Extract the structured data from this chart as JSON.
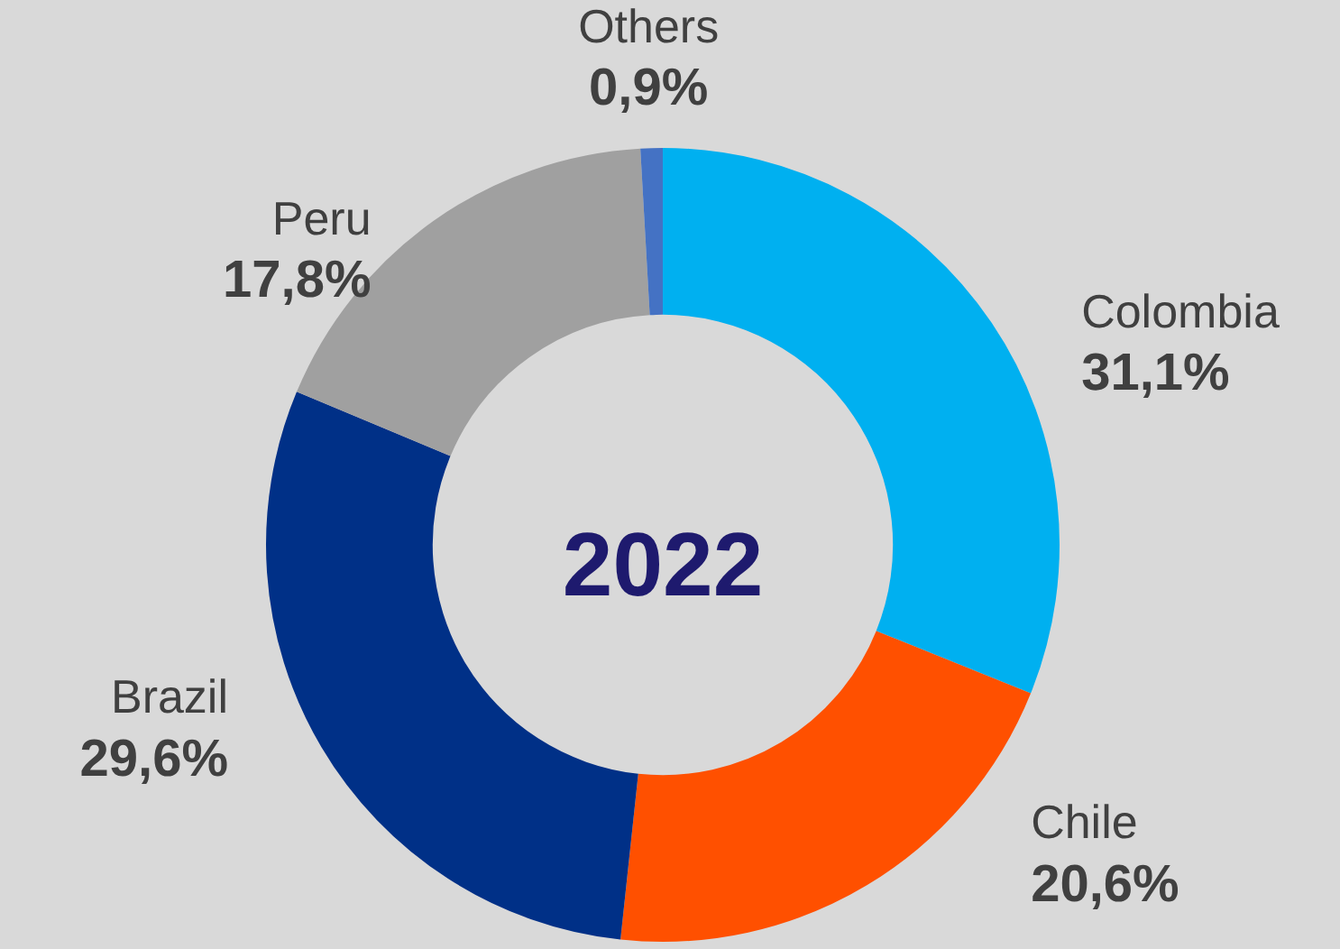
{
  "chart_data": {
    "type": "donut",
    "title": "2022",
    "categories": [
      "Colombia",
      "Chile",
      "Brazil",
      "Peru",
      "Others"
    ],
    "values": [
      31.1,
      20.6,
      29.6,
      17.8,
      0.9
    ],
    "value_labels": [
      "31,1%",
      "20,6%",
      "29,6%",
      "17,8%",
      "0,9%"
    ],
    "colors": [
      "#00b0f0",
      "#ff5000",
      "#003087",
      "#a0a0a0",
      "#4472c4"
    ],
    "legend": false
  }
}
